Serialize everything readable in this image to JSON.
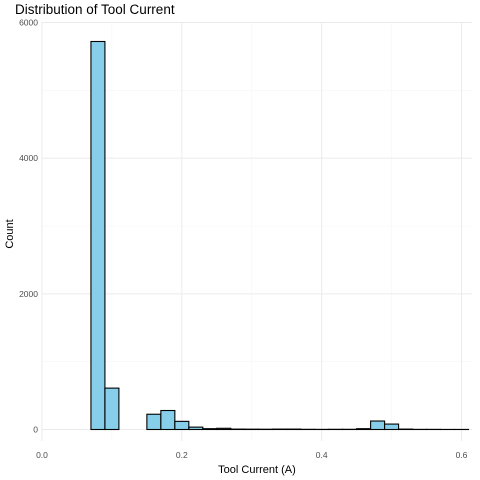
{
  "chart_data": {
    "type": "histogram",
    "title": "Distribution of Tool Current",
    "xlabel": "Tool Current (A)",
    "ylabel": "Count",
    "xlim": [
      0.0,
      0.615
    ],
    "ylim": [
      0,
      6000
    ],
    "x_ticks": [
      0.0,
      0.2,
      0.4,
      0.6
    ],
    "x_tick_labels": [
      "0.0",
      "0.2",
      "0.4",
      "0.6"
    ],
    "y_ticks": [
      0,
      2000,
      4000,
      6000
    ],
    "y_tick_labels": [
      "0",
      "2000",
      "4000",
      "6000"
    ],
    "grid": true,
    "legend": "none",
    "bin_width": 0.02,
    "bins": [
      {
        "x0": 0.01,
        "x1": 0.03,
        "count": 0
      },
      {
        "x0": 0.03,
        "x1": 0.05,
        "count": 0
      },
      {
        "x0": 0.05,
        "x1": 0.07,
        "count": 0
      },
      {
        "x0": 0.07,
        "x1": 0.09,
        "count": 5720
      },
      {
        "x0": 0.09,
        "x1": 0.11,
        "count": 610
      },
      {
        "x0": 0.11,
        "x1": 0.13,
        "count": 0
      },
      {
        "x0": 0.13,
        "x1": 0.15,
        "count": 0
      },
      {
        "x0": 0.15,
        "x1": 0.17,
        "count": 225
      },
      {
        "x0": 0.17,
        "x1": 0.19,
        "count": 280
      },
      {
        "x0": 0.19,
        "x1": 0.21,
        "count": 120
      },
      {
        "x0": 0.21,
        "x1": 0.23,
        "count": 35
      },
      {
        "x0": 0.23,
        "x1": 0.25,
        "count": 12
      },
      {
        "x0": 0.25,
        "x1": 0.27,
        "count": 18
      },
      {
        "x0": 0.27,
        "x1": 0.29,
        "count": 6
      },
      {
        "x0": 0.29,
        "x1": 0.31,
        "count": 5
      },
      {
        "x0": 0.31,
        "x1": 0.33,
        "count": 4
      },
      {
        "x0": 0.33,
        "x1": 0.35,
        "count": 6
      },
      {
        "x0": 0.35,
        "x1": 0.37,
        "count": 6
      },
      {
        "x0": 0.37,
        "x1": 0.39,
        "count": 3
      },
      {
        "x0": 0.39,
        "x1": 0.41,
        "count": 2
      },
      {
        "x0": 0.41,
        "x1": 0.43,
        "count": 3
      },
      {
        "x0": 0.43,
        "x1": 0.45,
        "count": 3
      },
      {
        "x0": 0.45,
        "x1": 0.47,
        "count": 12
      },
      {
        "x0": 0.47,
        "x1": 0.49,
        "count": 125
      },
      {
        "x0": 0.49,
        "x1": 0.51,
        "count": 80
      },
      {
        "x0": 0.51,
        "x1": 0.53,
        "count": 6
      },
      {
        "x0": 0.53,
        "x1": 0.55,
        "count": 2
      },
      {
        "x0": 0.55,
        "x1": 0.57,
        "count": 2
      },
      {
        "x0": 0.57,
        "x1": 0.59,
        "count": 1
      },
      {
        "x0": 0.59,
        "x1": 0.61,
        "count": 1
      }
    ],
    "colors": {
      "bar_fill": "#87CEEB",
      "bar_stroke": "#000000",
      "grid_major": "#ebebeb",
      "grid_minor": "#f5f5f5",
      "tick_text": "#4d4d4d"
    }
  }
}
